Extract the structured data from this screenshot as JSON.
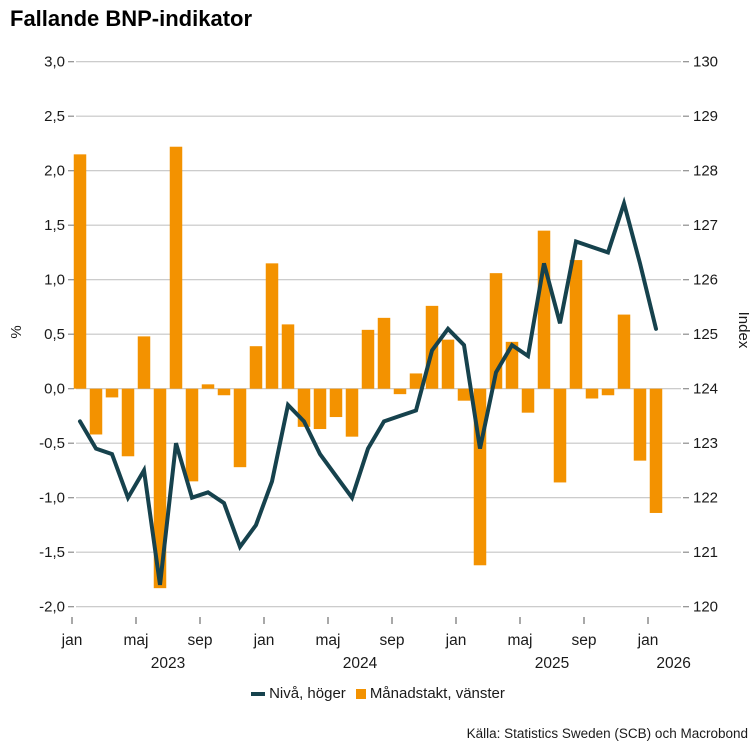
{
  "title": "Fallande BNP-indikator",
  "source": "Källa: Statistics Sweden (SCB) och Macrobond",
  "legend": [
    {
      "label": "Nivå, höger",
      "swatch": "line"
    },
    {
      "label": "Månadstakt, vänster",
      "swatch": "square"
    }
  ],
  "colors": {
    "bar": "#f39200",
    "line": "#16424d",
    "grid": "#c5c5c5",
    "tick": "#8c8c8c",
    "text": "#1a1a1a"
  },
  "chart_data": {
    "type": "combo",
    "title": "Fallande BNP-indikator",
    "x": [
      "2023-01",
      "2023-02",
      "2023-03",
      "2023-04",
      "2023-05",
      "2023-06",
      "2023-07",
      "2023-08",
      "2023-09",
      "2023-10",
      "2023-11",
      "2023-12",
      "2024-01",
      "2024-02",
      "2024-03",
      "2024-04",
      "2024-05",
      "2024-06",
      "2024-07",
      "2024-08",
      "2024-09",
      "2024-10",
      "2024-11",
      "2024-12",
      "2025-01",
      "2025-02",
      "2025-03",
      "2025-04",
      "2025-05",
      "2025-06",
      "2025-07",
      "2025-08",
      "2025-09",
      "2025-10",
      "2025-11",
      "2025-12",
      "2026-01"
    ],
    "series": [
      {
        "name": "Månadstakt, vänster",
        "type": "bar",
        "axis": "left",
        "unit": "%",
        "values": [
          2.15,
          -0.42,
          -0.08,
          -0.62,
          0.48,
          -1.83,
          2.22,
          -0.85,
          0.04,
          -0.06,
          -0.72,
          0.39,
          1.15,
          0.59,
          -0.35,
          -0.37,
          -0.26,
          -0.44,
          0.54,
          0.65,
          -0.05,
          0.14,
          0.76,
          0.45,
          -0.11,
          -1.62,
          1.06,
          0.43,
          -0.22,
          1.45,
          -0.86,
          1.18,
          -0.09,
          -0.06,
          0.68,
          -0.66,
          -1.14
        ]
      },
      {
        "name": "Nivå, höger",
        "type": "line",
        "axis": "right",
        "unit": "index",
        "values": [
          123.4,
          122.9,
          122.8,
          122.0,
          122.5,
          120.4,
          123.0,
          122.0,
          122.1,
          121.9,
          121.1,
          121.5,
          122.3,
          123.7,
          123.4,
          122.8,
          122.4,
          122.0,
          122.9,
          123.4,
          123.5,
          123.6,
          124.7,
          125.1,
          124.8,
          122.9,
          124.3,
          124.8,
          124.6,
          126.3,
          125.2,
          126.7,
          126.6,
          126.5,
          127.4,
          126.3,
          125.1
        ]
      }
    ],
    "left_axis": {
      "label": "%",
      "min": -2.0,
      "max": 3.0,
      "tick_values": [
        3.0,
        2.5,
        2.0,
        1.5,
        1.0,
        0.5,
        0.0,
        -0.5,
        -1.0,
        -1.5,
        -2.0
      ],
      "tick_labels": [
        "3,0",
        "2,5",
        "2,0",
        "1,5",
        "1,0",
        "0,5",
        "0,0",
        "-0,5",
        "-1,0",
        "-1,5",
        "-2,0"
      ]
    },
    "right_axis": {
      "label": "Index",
      "min": 120,
      "max": 130,
      "tick_values": [
        130,
        129,
        128,
        127,
        126,
        125,
        124,
        123,
        122,
        121,
        120
      ],
      "tick_labels": [
        "130",
        "129",
        "128",
        "127",
        "126",
        "125",
        "124",
        "123",
        "122",
        "121",
        "120"
      ]
    },
    "x_ticks": [
      {
        "label": "jan",
        "month": 0
      },
      {
        "label": "maj",
        "month": 4
      },
      {
        "label": "sep",
        "month": 8
      },
      {
        "label": "jan",
        "month": 12
      },
      {
        "label": "maj",
        "month": 16
      },
      {
        "label": "sep",
        "month": 20
      },
      {
        "label": "jan",
        "month": 24
      },
      {
        "label": "maj",
        "month": 28
      },
      {
        "label": "sep",
        "month": 32
      },
      {
        "label": "jan",
        "month": 36
      }
    ],
    "year_labels": [
      {
        "label": "2023",
        "month": 6
      },
      {
        "label": "2024",
        "month": 18
      },
      {
        "label": "2025",
        "month": 30
      },
      {
        "label": "2026",
        "month": 37.6
      }
    ],
    "grid": true,
    "legend_position": "bottom"
  }
}
